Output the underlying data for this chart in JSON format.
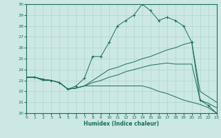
{
  "title": "",
  "xlabel": "Humidex (Indice chaleur)",
  "xlim": [
    0,
    23
  ],
  "ylim": [
    20,
    30
  ],
  "xticks": [
    0,
    1,
    2,
    3,
    4,
    5,
    6,
    7,
    8,
    9,
    10,
    11,
    12,
    13,
    14,
    15,
    16,
    17,
    18,
    19,
    20,
    21,
    22,
    23
  ],
  "yticks": [
    20,
    21,
    22,
    23,
    24,
    25,
    26,
    27,
    28,
    29,
    30
  ],
  "background_color": "#cce8e4",
  "line_color": "#1a6b5e",
  "grid_color": "#afd4cf",
  "lines": [
    {
      "x": [
        0,
        1,
        2,
        3,
        4,
        5,
        6,
        7,
        8,
        9,
        10,
        11,
        12,
        13,
        14,
        15,
        16,
        17,
        18,
        19,
        20,
        21,
        22,
        23
      ],
      "y": [
        23.3,
        23.3,
        23.1,
        23.0,
        22.8,
        22.2,
        22.5,
        23.2,
        25.2,
        25.2,
        26.5,
        28.0,
        28.5,
        29.0,
        30.0,
        29.4,
        28.5,
        28.8,
        28.5,
        28.0,
        26.5,
        21.2,
        20.7,
        20.0
      ],
      "marker": "+"
    },
    {
      "x": [
        0,
        1,
        2,
        3,
        4,
        5,
        6,
        7,
        8,
        9,
        10,
        11,
        12,
        13,
        14,
        15,
        16,
        17,
        18,
        19,
        20,
        21,
        22,
        23
      ],
      "y": [
        23.3,
        23.3,
        23.1,
        23.0,
        22.8,
        22.2,
        22.3,
        22.5,
        23.0,
        23.5,
        24.0,
        24.2,
        24.5,
        24.7,
        25.0,
        25.2,
        25.5,
        25.8,
        26.0,
        26.3,
        26.5,
        22.0,
        21.5,
        21.0
      ],
      "marker": null
    },
    {
      "x": [
        0,
        1,
        2,
        3,
        4,
        5,
        6,
        7,
        8,
        9,
        10,
        11,
        12,
        13,
        14,
        15,
        16,
        17,
        18,
        19,
        20,
        21,
        22,
        23
      ],
      "y": [
        23.3,
        23.3,
        23.1,
        23.0,
        22.8,
        22.2,
        22.3,
        22.5,
        22.8,
        23.0,
        23.3,
        23.5,
        23.8,
        24.0,
        24.2,
        24.4,
        24.5,
        24.6,
        24.5,
        24.5,
        24.5,
        21.2,
        20.9,
        20.5
      ],
      "marker": null
    },
    {
      "x": [
        0,
        1,
        2,
        3,
        4,
        5,
        6,
        7,
        8,
        9,
        10,
        11,
        12,
        13,
        14,
        15,
        16,
        17,
        18,
        19,
        20,
        21,
        22,
        23
      ],
      "y": [
        23.3,
        23.3,
        23.0,
        23.0,
        22.8,
        22.2,
        22.3,
        22.5,
        22.5,
        22.5,
        22.5,
        22.5,
        22.5,
        22.5,
        22.5,
        22.3,
        22.0,
        21.8,
        21.5,
        21.2,
        21.0,
        20.8,
        20.5,
        20.0
      ],
      "marker": null
    }
  ]
}
